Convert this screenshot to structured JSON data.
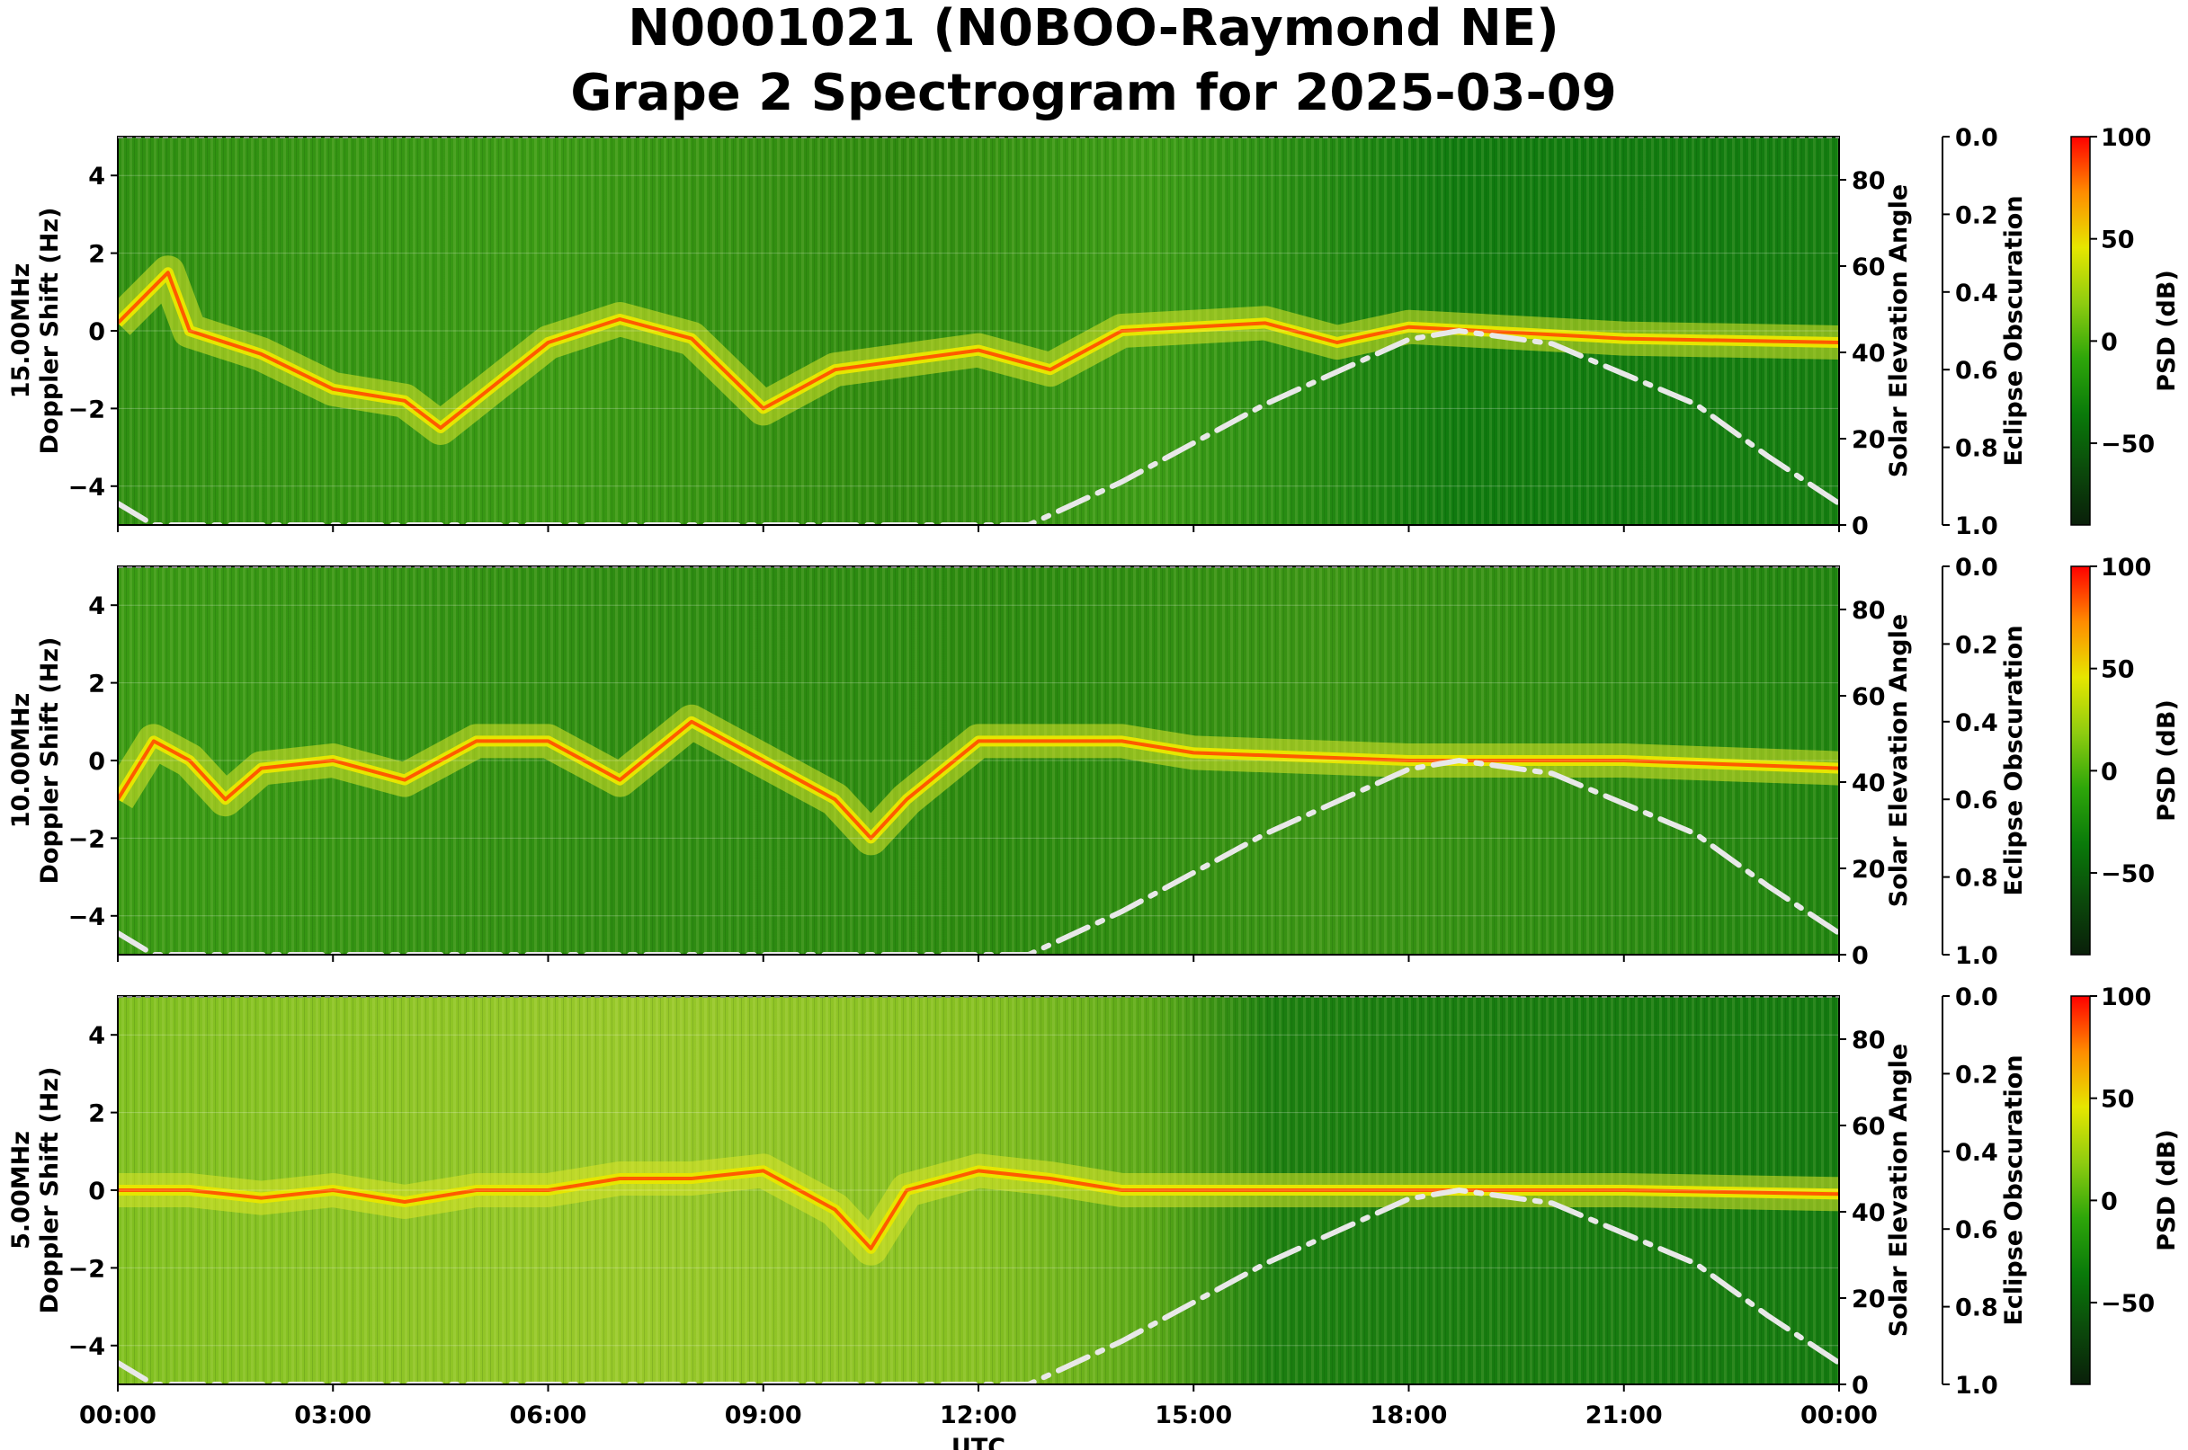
{
  "title": {
    "line1": "N0001021 (N0BOO-Raymond NE)",
    "line2": "Grape 2 Spectrogram for 2025-03-09"
  },
  "colors": {
    "psd_colormap": [
      "#0a1f0a",
      "#0b4a0b",
      "#0a7a0a",
      "#2ea60a",
      "#8fcc10",
      "#e6e600",
      "#ff8c00",
      "#ff0000"
    ],
    "elevation_curve": "#e8e8e8"
  },
  "chart_data": [
    {
      "type": "heatmap",
      "panel_label": "15.00MHz",
      "ylabel": "Doppler Shift (Hz)",
      "xlabel": "",
      "xlim": [
        "00:00",
        "24:00"
      ],
      "ylim": [
        -5,
        5
      ],
      "yticks": [
        4,
        2,
        0,
        -2,
        -4
      ],
      "right_axis_1": {
        "label": "Solar Elevation Angle",
        "ylim": [
          0,
          90
        ],
        "ticks": [
          80,
          60,
          40,
          20,
          0
        ]
      },
      "right_axis_2": {
        "label": "Eclipse Obscuration",
        "ylim": [
          1.0,
          0.0
        ],
        "ticks": [
          "0.0",
          "0.2",
          "0.4",
          "0.6",
          "0.8",
          "1.0"
        ]
      },
      "colorbar": {
        "label": "PSD (dB)",
        "range": [
          -90,
          100
        ],
        "ticks": [
          100,
          50,
          0,
          -50
        ]
      },
      "carrier_doppler": {
        "hours": [
          0,
          0.7,
          1,
          2,
          3,
          4,
          4.5,
          6,
          7,
          8,
          9,
          10,
          12,
          13,
          14,
          16,
          17,
          18,
          19,
          21,
          24
        ],
        "hz": [
          0.2,
          1.5,
          0,
          -0.6,
          -1.5,
          -1.8,
          -2.5,
          -0.3,
          0.3,
          -0.2,
          -2,
          -1,
          -0.5,
          -1,
          0,
          0.2,
          -0.3,
          0.1,
          0,
          -0.2,
          -0.3
        ]
      },
      "solar_elevation_deg": {
        "hours": [
          0,
          0.5,
          12.7,
          14,
          16,
          18,
          18.7,
          20,
          22,
          23,
          24
        ],
        "values": [
          5,
          0,
          0,
          10,
          28,
          43,
          45,
          42,
          28,
          16,
          5
        ]
      }
    },
    {
      "type": "heatmap",
      "panel_label": "10.00MHz",
      "ylabel": "Doppler Shift (Hz)",
      "xlabel": "",
      "xlim": [
        "00:00",
        "24:00"
      ],
      "ylim": [
        -5,
        5
      ],
      "yticks": [
        4,
        2,
        0,
        -2,
        -4
      ],
      "right_axis_1": {
        "label": "Solar Elevation Angle",
        "ylim": [
          0,
          90
        ],
        "ticks": [
          80,
          60,
          40,
          20,
          0
        ]
      },
      "right_axis_2": {
        "label": "Eclipse Obscuration",
        "ylim": [
          1.0,
          0.0
        ],
        "ticks": [
          "0.0",
          "0.2",
          "0.4",
          "0.6",
          "0.8",
          "1.0"
        ]
      },
      "colorbar": {
        "label": "PSD (dB)",
        "range": [
          -90,
          100
        ],
        "ticks": [
          100,
          50,
          0,
          -50
        ]
      },
      "carrier_doppler": {
        "hours": [
          0,
          0.5,
          1,
          1.5,
          2,
          3,
          4,
          5,
          6,
          7,
          8,
          9,
          10,
          10.5,
          11,
          12,
          13,
          14,
          15,
          18,
          21,
          24
        ],
        "hz": [
          -1,
          0.5,
          0,
          -1,
          -0.2,
          0,
          -0.5,
          0.5,
          0.5,
          -0.5,
          1,
          0,
          -1,
          -2,
          -1,
          0.5,
          0.5,
          0.5,
          0.2,
          0,
          0,
          -0.2
        ]
      },
      "solar_elevation_deg": {
        "hours": [
          0,
          0.5,
          12.7,
          14,
          16,
          18,
          18.7,
          20,
          22,
          23,
          24
        ],
        "values": [
          5,
          0,
          0,
          10,
          28,
          43,
          45,
          42,
          28,
          16,
          5
        ]
      }
    },
    {
      "type": "heatmap",
      "panel_label": "5.00MHz",
      "ylabel": "Doppler Shift (Hz)",
      "xlabel": "UTC",
      "xlim": [
        "00:00",
        "24:00"
      ],
      "xticks": [
        "00:00",
        "03:00",
        "06:00",
        "09:00",
        "12:00",
        "15:00",
        "18:00",
        "21:00",
        "00:00"
      ],
      "ylim": [
        -5,
        5
      ],
      "yticks": [
        4,
        2,
        0,
        -2,
        -4
      ],
      "right_axis_1": {
        "label": "Solar Elevation Angle",
        "ylim": [
          0,
          90
        ],
        "ticks": [
          80,
          60,
          40,
          20,
          0
        ]
      },
      "right_axis_2": {
        "label": "Eclipse Obscuration",
        "ylim": [
          1.0,
          0.0
        ],
        "ticks": [
          "0.0",
          "0.2",
          "0.4",
          "0.6",
          "0.8",
          "1.0"
        ]
      },
      "colorbar": {
        "label": "PSD (dB)",
        "range": [
          -90,
          100
        ],
        "ticks": [
          100,
          50,
          0,
          -50
        ]
      },
      "carrier_doppler": {
        "hours": [
          0,
          1,
          2,
          3,
          4,
          5,
          6,
          7,
          8,
          9,
          10,
          10.5,
          11,
          12,
          13,
          14,
          15,
          18,
          21,
          24
        ],
        "hz": [
          0,
          0,
          -0.2,
          0,
          -0.3,
          0,
          0,
          0.3,
          0.3,
          0.5,
          -0.5,
          -1.5,
          0,
          0.5,
          0.3,
          0,
          0,
          0,
          0,
          -0.1
        ]
      },
      "solar_elevation_deg": {
        "hours": [
          0,
          0.5,
          12.7,
          14,
          16,
          18,
          18.7,
          20,
          22,
          23,
          24
        ],
        "values": [
          5,
          0,
          0,
          10,
          28,
          43,
          45,
          42,
          28,
          16,
          5
        ]
      }
    }
  ]
}
